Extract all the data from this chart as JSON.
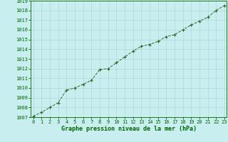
{
  "x": [
    0,
    1,
    2,
    3,
    4,
    5,
    6,
    7,
    8,
    9,
    10,
    11,
    12,
    13,
    14,
    15,
    16,
    17,
    18,
    19,
    20,
    21,
    22,
    23
  ],
  "y": [
    1007.1,
    1007.5,
    1008.0,
    1008.5,
    1009.8,
    1010.0,
    1010.4,
    1010.8,
    1011.9,
    1012.0,
    1012.6,
    1013.2,
    1013.8,
    1014.3,
    1014.5,
    1014.8,
    1015.3,
    1015.5,
    1016.0,
    1016.5,
    1016.9,
    1017.3,
    1018.0,
    1018.5
  ],
  "xlim": [
    -0.3,
    23.3
  ],
  "ylim": [
    1007,
    1019
  ],
  "yticks": [
    1007,
    1008,
    1009,
    1010,
    1011,
    1012,
    1013,
    1014,
    1015,
    1016,
    1017,
    1018,
    1019
  ],
  "xticks": [
    0,
    1,
    2,
    3,
    4,
    5,
    6,
    7,
    8,
    9,
    10,
    11,
    12,
    13,
    14,
    15,
    16,
    17,
    18,
    19,
    20,
    21,
    22,
    23
  ],
  "line_color": "#2d6b2d",
  "marker": "+",
  "bg_color": "#c8eef0",
  "grid_color": "#b0d8d8",
  "xlabel": "Graphe pression niveau de la mer (hPa)",
  "xlabel_color": "#006600",
  "tick_color": "#006600",
  "spine_color": "#006600",
  "tick_fontsize": 5.0,
  "xlabel_fontsize": 6.0
}
